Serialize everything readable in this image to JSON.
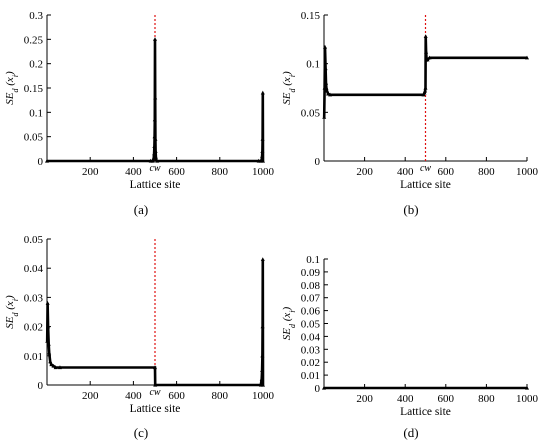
{
  "chart_data": [
    {
      "panel": "a",
      "caption": "(a)",
      "type": "line",
      "xlabel": "Lattice site",
      "ylabel": "SE_d (x_i)",
      "xlim": [
        0,
        1000
      ],
      "ylim": [
        0,
        0.3
      ],
      "xticks": [
        200,
        400,
        600,
        800,
        1000
      ],
      "yticks": [
        0,
        0.05,
        0.1,
        0.15,
        0.2,
        0.25,
        0.3
      ],
      "ytick_labels": [
        "0",
        "0.05",
        "0.1",
        "0.15",
        "0.2",
        "0.25",
        "0.3"
      ],
      "marker_label": "cw",
      "marker_x": 500,
      "x": [
        0,
        480,
        490,
        492,
        494,
        496,
        497,
        498,
        499,
        500,
        501,
        502,
        503,
        504,
        505,
        510,
        980,
        990,
        994,
        996,
        997,
        998,
        999,
        1000
      ],
      "y": [
        0,
        0,
        0,
        0.002,
        0.006,
        0.015,
        0.03,
        0.05,
        0.085,
        0.25,
        0.13,
        0.045,
        0.02,
        0.008,
        0.002,
        0,
        0,
        0,
        0.003,
        0.01,
        0.02,
        0.045,
        0.14,
        0
      ]
    },
    {
      "panel": "b",
      "caption": "(b)",
      "type": "line",
      "xlabel": "Lattice site",
      "ylabel": "SE_d (x_i)",
      "xlim": [
        0,
        1000
      ],
      "ylim": [
        0,
        0.15
      ],
      "xticks": [
        200,
        400,
        600,
        800,
        1000
      ],
      "yticks": [
        0,
        0.05,
        0.1,
        0.15
      ],
      "ytick_labels": [
        "0",
        "0.05",
        "0.1",
        "0.15"
      ],
      "marker_label": "cw",
      "marker_x": 500,
      "x": [
        1,
        3,
        5,
        8,
        10,
        12,
        15,
        20,
        30,
        490,
        495,
        498,
        500,
        501,
        503,
        505,
        510,
        520,
        1000
      ],
      "y": [
        0.045,
        0.075,
        0.117,
        0.095,
        0.08,
        0.075,
        0.072,
        0.069,
        0.068,
        0.068,
        0.07,
        0.072,
        0.075,
        0.128,
        0.112,
        0.106,
        0.104,
        0.106,
        0.106
      ]
    },
    {
      "panel": "c",
      "caption": "(c)",
      "type": "line",
      "xlabel": "Lattice site",
      "ylabel": "SE_d (x_i)",
      "xlim": [
        0,
        1000
      ],
      "ylim": [
        0,
        0.05
      ],
      "xticks": [
        200,
        400,
        600,
        800,
        1000
      ],
      "yticks": [
        0,
        0.01,
        0.02,
        0.03,
        0.04,
        0.05
      ],
      "ytick_labels": [
        "0",
        "0.01",
        "0.02",
        "0.03",
        "0.04",
        "0.05"
      ],
      "marker_label": "cw",
      "marker_x": 500,
      "x": [
        1,
        3,
        5,
        8,
        10,
        15,
        20,
        30,
        40,
        60,
        500,
        501,
        990,
        994,
        996,
        997,
        998,
        999,
        1000
      ],
      "y": [
        0.015,
        0.028,
        0.02,
        0.014,
        0.011,
        0.008,
        0.007,
        0.0065,
        0.006,
        0.006,
        0.006,
        0,
        0,
        0.002,
        0.005,
        0.01,
        0.02,
        0.043,
        0
      ]
    },
    {
      "panel": "d",
      "caption": "(d)",
      "type": "line",
      "xlabel": "Lattice site",
      "ylabel": "SE_d (x_i)",
      "xlim": [
        0,
        1000
      ],
      "ylim": [
        0,
        0.1
      ],
      "xticks": [
        200,
        400,
        600,
        800,
        1000
      ],
      "yticks": [
        0,
        0.01,
        0.02,
        0.03,
        0.04,
        0.05,
        0.06,
        0.07,
        0.08,
        0.09,
        0.1
      ],
      "ytick_labels": [
        "0",
        "0.01",
        "0.02",
        "0.03",
        "0.04",
        "0.05",
        "0.06",
        "0.07",
        "0.08",
        "0.09",
        "0.1"
      ],
      "marker_label": "",
      "marker_x": null,
      "x": [
        0,
        1000
      ],
      "y": [
        0,
        0
      ]
    }
  ]
}
